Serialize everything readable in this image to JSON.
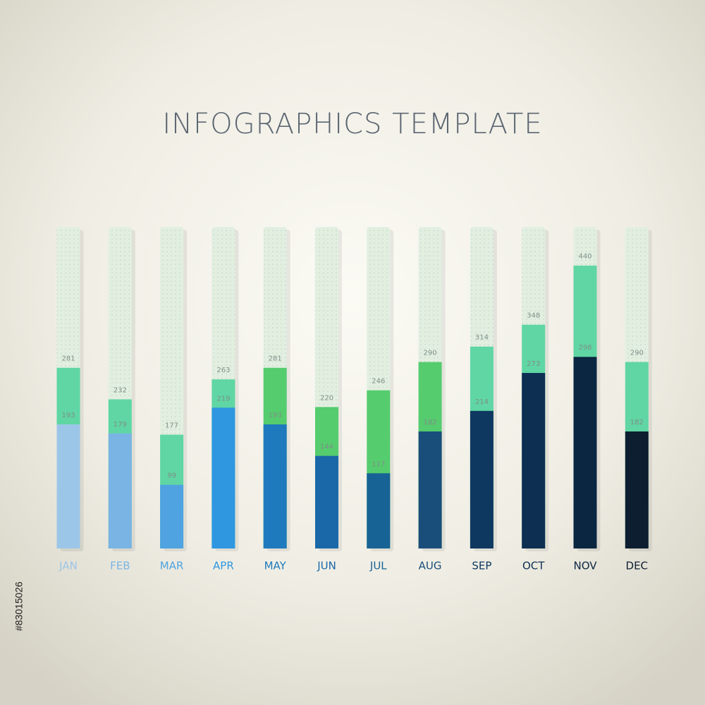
{
  "chart_data": {
    "type": "bar",
    "title": "INFOGRAPHICS   TEMPLATE",
    "categories": [
      "JAN",
      "FEB",
      "MAR",
      "APR",
      "MAY",
      "JUN",
      "JUL",
      "AUG",
      "SEP",
      "OCT",
      "NOV",
      "DEC"
    ],
    "series": [
      {
        "colors": [
          "#5fd6a3",
          "#5fd6a3",
          "#5fd6a3",
          "#5fd6a3",
          "#55cc6e",
          "#55cc6e",
          "#55cc6e",
          "#55cc6e",
          "#5fd6a3",
          "#5fd6a3",
          "#5fd6a3",
          "#5fd6a3"
        ],
        "values": [
          281,
          232,
          177,
          263,
          281,
          220,
          246,
          290,
          314,
          348,
          440,
          290
        ]
      },
      {
        "colors": [
          "#9cc6e8",
          "#7ab4e4",
          "#4fa3e0",
          "#2e97e0",
          "#1e7abd",
          "#1a68a8",
          "#176395",
          "#1a4e7a",
          "#0e3860",
          "#0c2f52",
          "#0b2641",
          "#0d1e30"
        ],
        "values": [
          193,
          179,
          99,
          219,
          193,
          144,
          117,
          182,
          214,
          273,
          298,
          182
        ]
      }
    ],
    "ylim": [
      0,
      500
    ]
  },
  "watermark_id": "#83015026"
}
